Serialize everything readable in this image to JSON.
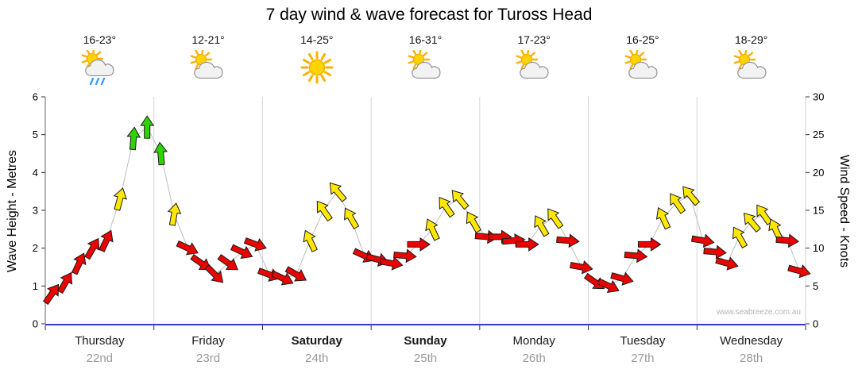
{
  "title": "7 day wind & wave forecast for Tuross Head",
  "watermark": "www.seabreeze.com.au",
  "days": [
    {
      "name": "Thursday",
      "date": "22nd",
      "temp": "16-23°",
      "icon": "sun-cloud-rain",
      "bold": false
    },
    {
      "name": "Friday",
      "date": "23rd",
      "temp": "12-21°",
      "icon": "sun-cloud",
      "bold": false
    },
    {
      "name": "Saturday",
      "date": "24th",
      "temp": "14-25°",
      "icon": "sun",
      "bold": true
    },
    {
      "name": "Sunday",
      "date": "25th",
      "temp": "16-31°",
      "icon": "sun-cloud",
      "bold": true
    },
    {
      "name": "Monday",
      "date": "26th",
      "temp": "17-23°",
      "icon": "sun-cloud",
      "bold": false
    },
    {
      "name": "Tuesday",
      "date": "27th",
      "temp": "16-25°",
      "icon": "sun-cloud",
      "bold": false
    },
    {
      "name": "Wednesday",
      "date": "28th",
      "temp": "18-29°",
      "icon": "sun-cloud",
      "bold": false
    }
  ],
  "chart_data": {
    "type": "scatter",
    "marker": "wind-arrow",
    "title": "7 day wind & wave forecast for Tuross Head",
    "x_categories": [
      "Thursday 22nd",
      "Friday 23rd",
      "Saturday 24th",
      "Sunday 25th",
      "Monday 26th",
      "Tuesday 27th",
      "Wednesday 28th"
    ],
    "left_axis": {
      "label": "Wave Height - Metres",
      "min": 0,
      "max": 6,
      "ticks": [
        0,
        1,
        2,
        3,
        4,
        5,
        6
      ]
    },
    "right_axis": {
      "label": "Wind Speed - Knots",
      "min": 0,
      "max": 30,
      "ticks": [
        0,
        5,
        10,
        15,
        20,
        25,
        30
      ]
    },
    "arrow_colors": {
      "red": "#e80400",
      "yellow": "#ffe800",
      "green": "#2ed300"
    },
    "points_format": [
      "x_day_fraction",
      "wind_knots",
      "color",
      "rotation_deg"
    ],
    "points": [
      [
        0.0625,
        4,
        "red",
        35
      ],
      [
        0.1875,
        5.5,
        "red",
        30
      ],
      [
        0.3125,
        8,
        "red",
        25
      ],
      [
        0.4375,
        10,
        "red",
        30
      ],
      [
        0.5625,
        11,
        "red",
        25
      ],
      [
        0.6875,
        16.5,
        "yellow",
        15
      ],
      [
        0.8125,
        24.5,
        "green",
        5
      ],
      [
        0.9375,
        26,
        "green",
        0
      ],
      [
        1.0625,
        22.5,
        "green",
        355
      ],
      [
        1.1875,
        14.5,
        "yellow",
        10
      ],
      [
        1.3125,
        10,
        "red",
        115
      ],
      [
        1.4375,
        8,
        "red",
        125
      ],
      [
        1.5625,
        6.5,
        "red",
        135
      ],
      [
        1.6875,
        8,
        "red",
        125
      ],
      [
        1.8125,
        9.5,
        "red",
        115
      ],
      [
        1.9375,
        10.5,
        "red",
        110
      ],
      [
        2.0625,
        6.5,
        "red",
        110
      ],
      [
        2.1875,
        6,
        "red",
        115
      ],
      [
        2.3125,
        6.5,
        "red",
        120
      ],
      [
        2.4375,
        11,
        "yellow",
        335
      ],
      [
        2.5625,
        15,
        "yellow",
        325
      ],
      [
        2.6875,
        17.5,
        "yellow",
        320
      ],
      [
        2.8125,
        14,
        "yellow",
        330
      ],
      [
        2.9375,
        9,
        "red",
        115
      ],
      [
        3.0625,
        8.5,
        "red",
        105
      ],
      [
        3.1875,
        8,
        "red",
        100
      ],
      [
        3.3125,
        9,
        "red",
        95
      ],
      [
        3.4375,
        10.5,
        "red",
        90
      ],
      [
        3.5625,
        12.5,
        "yellow",
        335
      ],
      [
        3.6875,
        15.5,
        "yellow",
        325
      ],
      [
        3.8125,
        16.5,
        "yellow",
        320
      ],
      [
        3.9375,
        13.5,
        "yellow",
        330
      ],
      [
        4.0625,
        11.5,
        "red",
        95
      ],
      [
        4.1875,
        11.5,
        "red",
        90
      ],
      [
        4.3125,
        11,
        "red",
        85
      ],
      [
        4.4375,
        10.5,
        "red",
        90
      ],
      [
        4.5625,
        13,
        "yellow",
        330
      ],
      [
        4.6875,
        14,
        "yellow",
        325
      ],
      [
        4.8125,
        11,
        "red",
        95
      ],
      [
        4.9375,
        7.5,
        "red",
        100
      ],
      [
        5.0625,
        5.5,
        "red",
        125
      ],
      [
        5.1875,
        5,
        "red",
        115
      ],
      [
        5.3125,
        6,
        "red",
        105
      ],
      [
        5.4375,
        9,
        "red",
        95
      ],
      [
        5.5625,
        10.5,
        "red",
        90
      ],
      [
        5.6875,
        14,
        "yellow",
        335
      ],
      [
        5.8125,
        16,
        "yellow",
        325
      ],
      [
        5.9375,
        17,
        "yellow",
        320
      ],
      [
        6.056,
        11,
        "red",
        100
      ],
      [
        6.167,
        9.5,
        "red",
        95
      ],
      [
        6.278,
        8,
        "red",
        105
      ],
      [
        6.389,
        11.5,
        "yellow",
        330
      ],
      [
        6.5,
        13.5,
        "yellow",
        320
      ],
      [
        6.611,
        14.5,
        "yellow",
        325
      ],
      [
        6.722,
        12.5,
        "yellow",
        335
      ],
      [
        6.833,
        11,
        "red",
        95
      ],
      [
        6.944,
        7,
        "red",
        105
      ]
    ]
  }
}
